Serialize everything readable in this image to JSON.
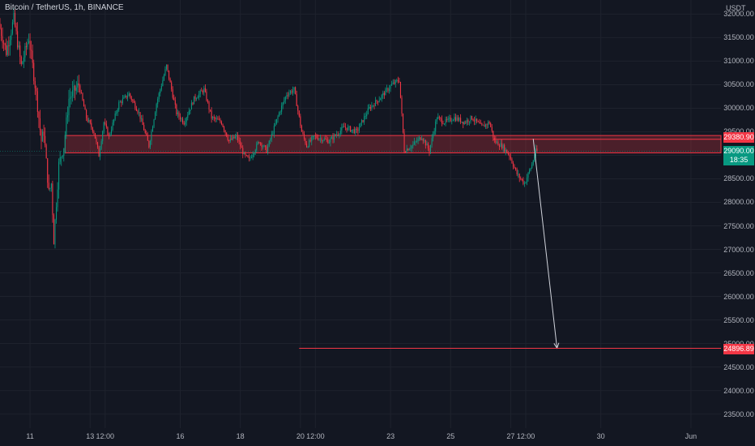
{
  "header": {
    "title": "Bitcoin / TetherUS, 1h, BINANCE",
    "currency": "USDT"
  },
  "chart_data": {
    "type": "candlestick",
    "title": "Bitcoin / TetherUS, 1h, BINANCE",
    "ylabel": "USDT",
    "ylim": [
      23200,
      32300
    ],
    "y_ticks": [
      "32000.00",
      "31500.00",
      "31000.00",
      "30500.00",
      "30000.00",
      "29500.00",
      "29000.00",
      "28500.00",
      "28000.00",
      "27500.00",
      "27000.00",
      "26500.00",
      "26000.00",
      "25500.00",
      "25000.00",
      "24500.00",
      "24000.00",
      "23500.00"
    ],
    "y_tick_values": [
      32000,
      31500,
      31000,
      30500,
      30000,
      29500,
      29000,
      28500,
      28000,
      27500,
      27000,
      26500,
      26000,
      25500,
      25000,
      24500,
      24000,
      23500
    ],
    "x_ticks": [
      "11",
      "13",
      "12:00",
      "16",
      "18",
      "20",
      "12:00",
      "23",
      "25",
      "27",
      "12:00",
      "30",
      "Jun"
    ],
    "x_tick_hours": [
      0,
      48,
      60,
      120,
      168,
      216,
      228,
      288,
      336,
      384,
      396,
      456,
      528
    ],
    "x_range_hours": [
      -24,
      552
    ],
    "last_candle_hour": 405,
    "anchors": [
      [
        -24,
        31800
      ],
      [
        -18,
        31200
      ],
      [
        -12,
        31900
      ],
      [
        -6,
        30900
      ],
      [
        0,
        31500
      ],
      [
        6,
        30300
      ],
      [
        10,
        29300
      ],
      [
        12,
        29500
      ],
      [
        16,
        28200
      ],
      [
        18,
        28400
      ],
      [
        20,
        27200
      ],
      [
        24,
        28800
      ],
      [
        28,
        29200
      ],
      [
        32,
        30200
      ],
      [
        40,
        30500
      ],
      [
        46,
        29800
      ],
      [
        52,
        29500
      ],
      [
        56,
        29000
      ],
      [
        60,
        29700
      ],
      [
        64,
        29400
      ],
      [
        72,
        30100
      ],
      [
        80,
        30300
      ],
      [
        88,
        29900
      ],
      [
        96,
        29200
      ],
      [
        102,
        30100
      ],
      [
        110,
        30900
      ],
      [
        118,
        29900
      ],
      [
        124,
        29700
      ],
      [
        132,
        30200
      ],
      [
        140,
        30400
      ],
      [
        146,
        29800
      ],
      [
        154,
        29700
      ],
      [
        160,
        29300
      ],
      [
        166,
        29400
      ],
      [
        172,
        29000
      ],
      [
        176,
        28900
      ],
      [
        184,
        29300
      ],
      [
        190,
        29100
      ],
      [
        200,
        29900
      ],
      [
        206,
        30300
      ],
      [
        212,
        30400
      ],
      [
        218,
        29500
      ],
      [
        222,
        29200
      ],
      [
        228,
        29400
      ],
      [
        240,
        29300
      ],
      [
        252,
        29600
      ],
      [
        262,
        29500
      ],
      [
        272,
        30000
      ],
      [
        280,
        30200
      ],
      [
        290,
        30500
      ],
      [
        296,
        30600
      ],
      [
        300,
        29100
      ],
      [
        306,
        29200
      ],
      [
        314,
        29400
      ],
      [
        320,
        29100
      ],
      [
        326,
        29800
      ],
      [
        332,
        29700
      ],
      [
        340,
        29800
      ],
      [
        348,
        29700
      ],
      [
        354,
        29800
      ],
      [
        362,
        29600
      ],
      [
        368,
        29700
      ],
      [
        372,
        29300
      ],
      [
        378,
        29200
      ],
      [
        384,
        29000
      ],
      [
        390,
        28600
      ],
      [
        396,
        28400
      ],
      [
        402,
        28800
      ],
      [
        405,
        29090
      ]
    ],
    "zone": {
      "bottom": 29050,
      "top": 29420
    },
    "arrow": {
      "from_hour": 402,
      "from_price": 29350,
      "to_hour": 421,
      "to_price": 24900
    },
    "target_level": 24896.89,
    "price_tags": {
      "resistance": "29380.90",
      "last_price": "29090.00",
      "countdown": "18:35",
      "target": "24896.89"
    },
    "colors": {
      "up": "#089981",
      "down": "#f23645",
      "zone": "#f23645",
      "background": "#131722",
      "grid": "#1e222d",
      "arrow": "#d1d4dc"
    }
  }
}
